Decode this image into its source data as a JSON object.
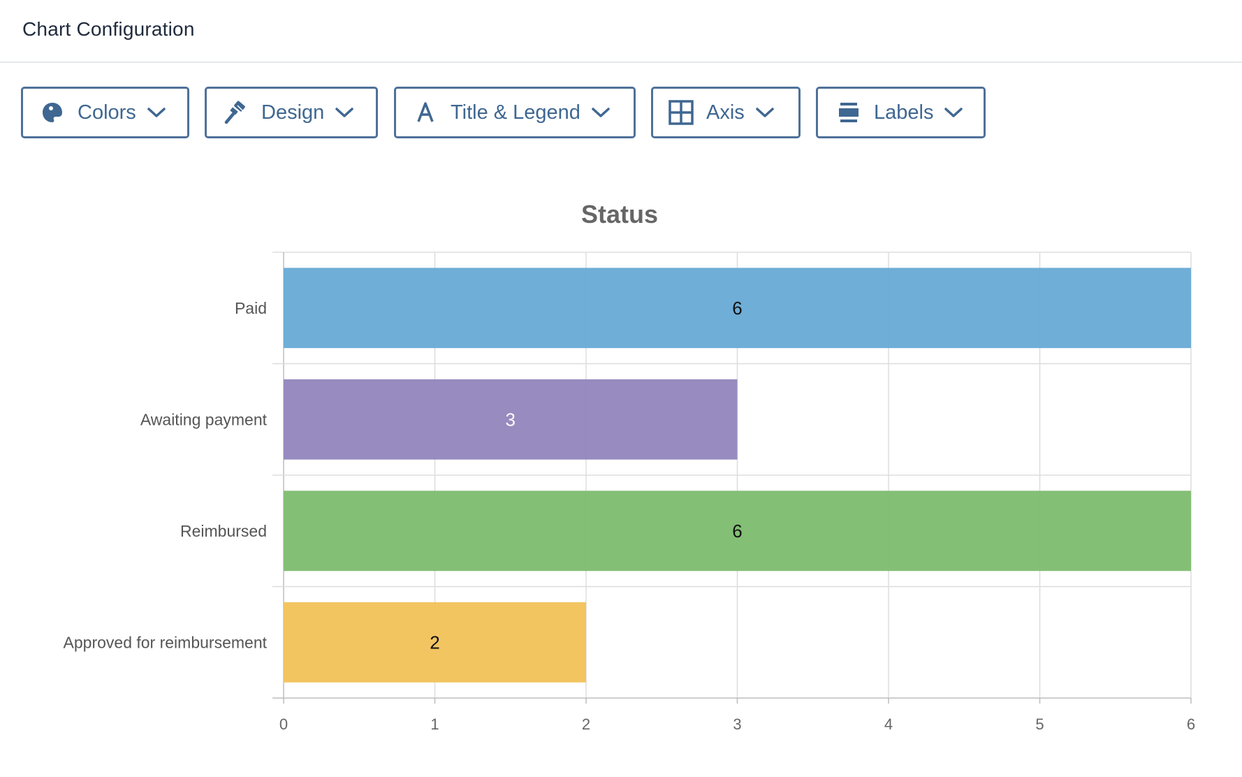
{
  "header": {
    "title": "Chart Configuration"
  },
  "toolbar": {
    "buttons": [
      {
        "label": "Colors",
        "icon": "palette-icon"
      },
      {
        "label": "Design",
        "icon": "brush-icon"
      },
      {
        "label": "Title & Legend",
        "icon": "text-a-icon"
      },
      {
        "label": "Axis",
        "icon": "grid-icon"
      },
      {
        "label": "Labels",
        "icon": "labels-icon"
      }
    ],
    "accent_color": "#4f7199"
  },
  "chart_data": {
    "type": "bar",
    "orientation": "horizontal",
    "title": "Status",
    "categories": [
      "Paid",
      "Awaiting payment",
      "Reimbursed",
      "Approved for reimbursement"
    ],
    "values": [
      6,
      3,
      6,
      2
    ],
    "colors": [
      "#6aabd6",
      "#9487bd",
      "#80bd72",
      "#f2c35c"
    ],
    "data_labels": [
      "6",
      "3",
      "6",
      "2"
    ],
    "data_label_colors": [
      "#111111",
      "#ffffff",
      "#111111",
      "#111111"
    ],
    "x_ticks": [
      "0",
      "1",
      "2",
      "3",
      "4",
      "5",
      "6"
    ],
    "xlim": [
      0,
      6
    ],
    "grid": true,
    "legend": "none"
  }
}
